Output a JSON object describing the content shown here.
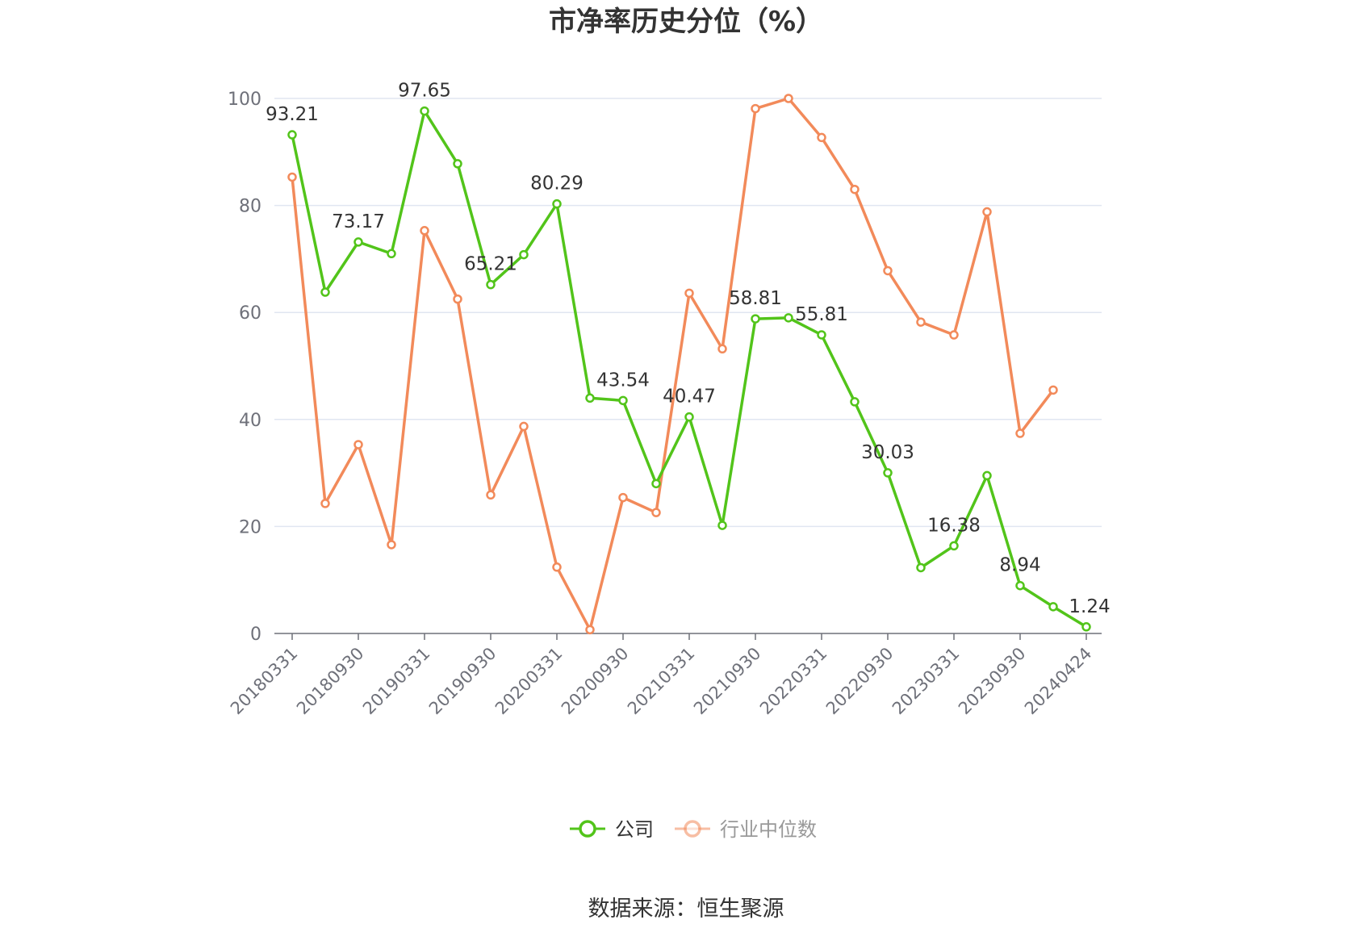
{
  "chart_data": {
    "type": "line",
    "title": "市净率历史分位（%）",
    "source": "数据来源：恒生聚源",
    "ylim": [
      0,
      100
    ],
    "yticks": [
      0,
      20,
      40,
      60,
      80,
      100
    ],
    "grid": true,
    "legend_position": "bottom",
    "x": [
      "20180331",
      "20180630",
      "20180930",
      "20181231",
      "20190331",
      "20190630",
      "20190930",
      "20191231",
      "20200331",
      "20200630",
      "20200930",
      "20201231",
      "20210331",
      "20210630",
      "20210930",
      "20211231",
      "20220331",
      "20220630",
      "20220930",
      "20221231",
      "20230331",
      "20230630",
      "20230930",
      "20231231",
      "20240424"
    ],
    "x_tick_labels": [
      "20180331",
      "20180930",
      "20190331",
      "20190930",
      "20200331",
      "20200930",
      "20210331",
      "20210930",
      "20220331",
      "20220930",
      "20230331",
      "20230930",
      "20240424"
    ],
    "series": [
      {
        "name": "公司",
        "color": "#52c41a",
        "values": [
          93.21,
          63.8,
          73.17,
          71.0,
          97.65,
          87.8,
          65.21,
          70.8,
          80.29,
          44.0,
          43.54,
          28.0,
          40.47,
          20.2,
          58.81,
          59.0,
          55.81,
          43.3,
          30.03,
          12.3,
          16.38,
          29.5,
          8.94,
          5.0,
          1.24
        ],
        "labels": [
          "93.21",
          "",
          "73.17",
          "",
          "97.65",
          "",
          "65.21",
          "",
          "80.29",
          "",
          "43.54",
          "",
          "40.47",
          "",
          "58.81",
          "",
          "55.81",
          "",
          "30.03",
          "",
          "16.38",
          "",
          "8.94",
          "",
          "1.24"
        ]
      },
      {
        "name": "行业中位数",
        "color": "#f28a5a",
        "values": [
          85.3,
          24.3,
          35.3,
          16.6,
          75.3,
          62.5,
          25.9,
          38.7,
          12.4,
          0.7,
          25.4,
          22.6,
          63.6,
          53.2,
          98.1,
          100.0,
          92.7,
          83.0,
          67.8,
          58.2,
          55.8,
          78.8,
          37.4,
          45.5,
          null
        ]
      }
    ]
  }
}
